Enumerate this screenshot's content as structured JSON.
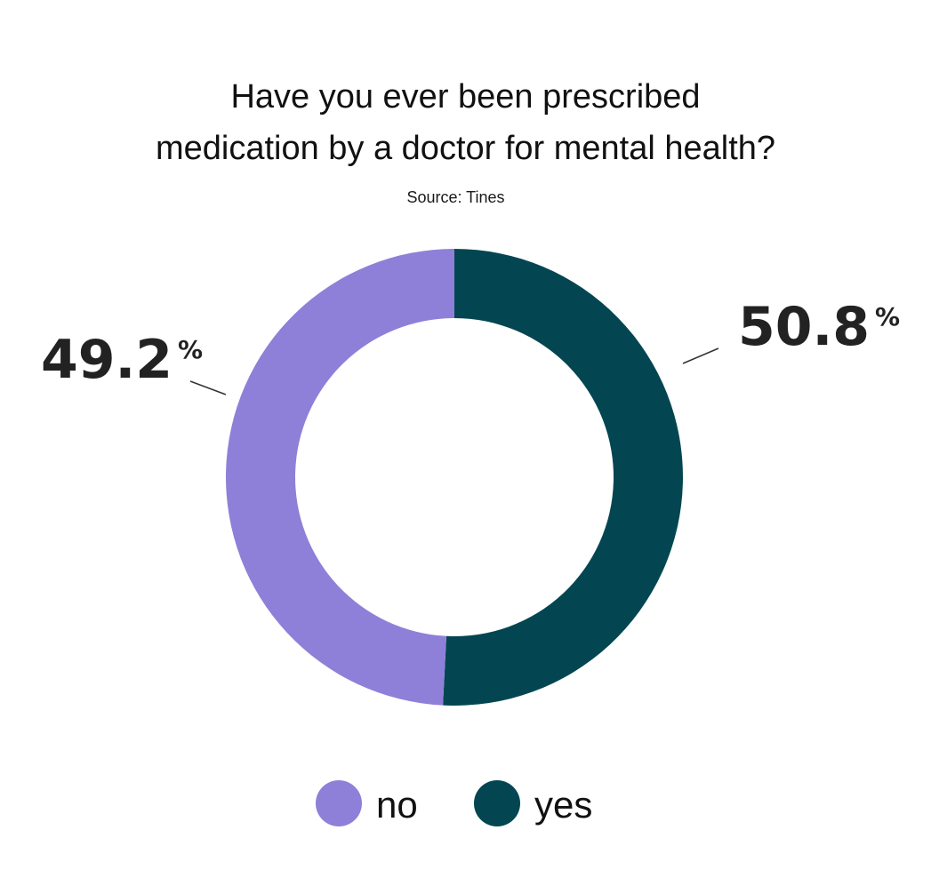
{
  "title_line1": "Have you ever been prescribed",
  "title_line2": "medication by a doctor for mental health?",
  "source": "Source: Tines",
  "chart_data": {
    "type": "pie",
    "donut": true,
    "title": "Have you ever been prescribed medication by a doctor for mental health?",
    "subtitle": "Source: Tines",
    "categories": [
      "yes",
      "no"
    ],
    "values": [
      50.8,
      49.2
    ],
    "colors": [
      "#034651",
      "#8e80d8"
    ],
    "value_labels": [
      "50.8",
      "49.2"
    ],
    "unit": "%",
    "legend_position": "bottom-center"
  },
  "legend": [
    {
      "label": "no",
      "color": "#8e80d8"
    },
    {
      "label": "yes",
      "color": "#034651"
    }
  ]
}
